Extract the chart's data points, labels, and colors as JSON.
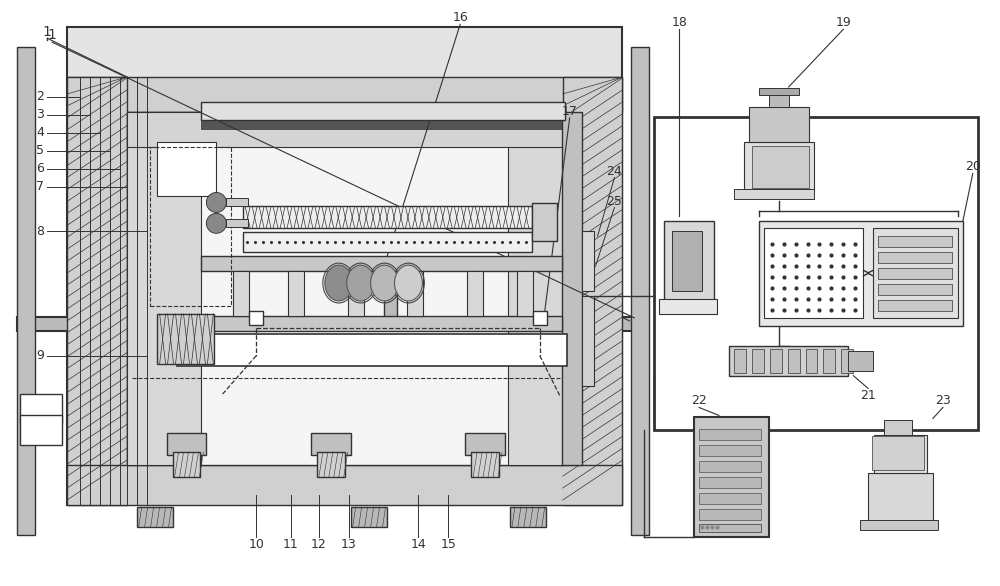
{
  "fig_width": 10.0,
  "fig_height": 5.86,
  "dpi": 100,
  "bg_color": "#ffffff",
  "lc": "#333333",
  "gray1": "#e8e8e8",
  "gray2": "#d0d0d0",
  "gray3": "#b8b8b8",
  "gray4": "#c8c8c8",
  "gray5": "#a0a0a0"
}
